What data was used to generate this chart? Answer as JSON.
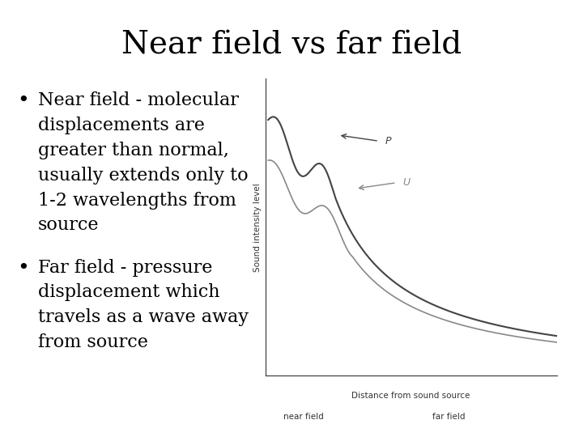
{
  "title": "Near field vs far field",
  "title_fontsize": 28,
  "title_font": "serif",
  "background_color": "#ffffff",
  "text_color": "#000000",
  "bullet1_lines": [
    "Near field - molecular",
    "displacements are",
    "greater than normal,",
    "usually extends only to",
    "1-2 wavelengths from",
    "source"
  ],
  "bullet2_lines": [
    "Far field - pressure",
    "displacement which",
    "travels as a wave away",
    "from source"
  ],
  "bullet_fontsize": 16,
  "bullet_font": "serif",
  "graph": {
    "ylabel": "Sound intensity level",
    "xlabel": "Distance from sound source",
    "near_field_label": "near field",
    "far_field_label": "far field",
    "P_label": "P",
    "U_label": "U",
    "line_color": "#444444",
    "line_color2": "#888888",
    "axis_color": "#333333"
  }
}
